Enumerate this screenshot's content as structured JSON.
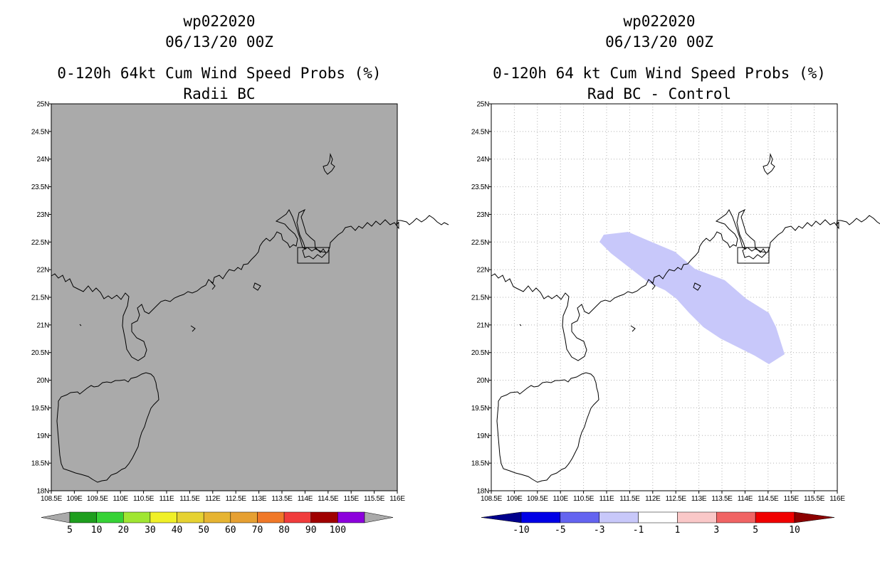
{
  "left_panel": {
    "storm_id": "wp022020",
    "datetime": "06/13/20 00Z",
    "product": "0-120h 64kt Cum Wind Speed Probs (%)",
    "subtitle": "Radii BC",
    "background_color": "#aaaaaa",
    "colorbar": {
      "labels": [
        "5",
        "10",
        "20",
        "30",
        "40",
        "50",
        "60",
        "70",
        "80",
        "90",
        "100"
      ],
      "colors": [
        "#1e9e1e",
        "#36d236",
        "#a0e632",
        "#f0f028",
        "#e6d232",
        "#e6b432",
        "#e6a032",
        "#f07828",
        "#f03c3c",
        "#a00000",
        "#8c00dc"
      ],
      "end_color": "#aaaaaa"
    }
  },
  "right_panel": {
    "storm_id": "wp022020",
    "datetime": "06/13/20 00Z",
    "product": "0-120h 64 kt Cum Wind Speed Probs (%)",
    "subtitle": "Rad BC - Control",
    "background_color": "#ffffff",
    "difference_shading_color": "#c8c8fa",
    "colorbar": {
      "labels": [
        "-10",
        "-5",
        "-3",
        "-1",
        "1",
        "3",
        "5",
        "10"
      ],
      "colors": [
        "#0000e6",
        "#6464f0",
        "#c8c8fa",
        "#ffffff",
        "#fac8c8",
        "#f06464",
        "#f00000"
      ],
      "low_end_color": "#00008c",
      "high_end_color": "#8c0000"
    }
  },
  "axes": {
    "lat_labels": [
      "25N",
      "24.5N",
      "24N",
      "23.5N",
      "23N",
      "22.5N",
      "22N",
      "21.5N",
      "21N",
      "20.5N",
      "20N",
      "19.5N",
      "19N",
      "18.5N",
      "18N"
    ],
    "lon_labels": [
      "108.5E",
      "109E",
      "109.5E",
      "110E",
      "110.5E",
      "111E",
      "111.5E",
      "112E",
      "112.5E",
      "113E",
      "113.5E",
      "114E",
      "114.5E",
      "115E",
      "115.5E",
      "116E"
    ],
    "lat_range": [
      18,
      25
    ],
    "lon_range": [
      108.5,
      116
    ]
  }
}
